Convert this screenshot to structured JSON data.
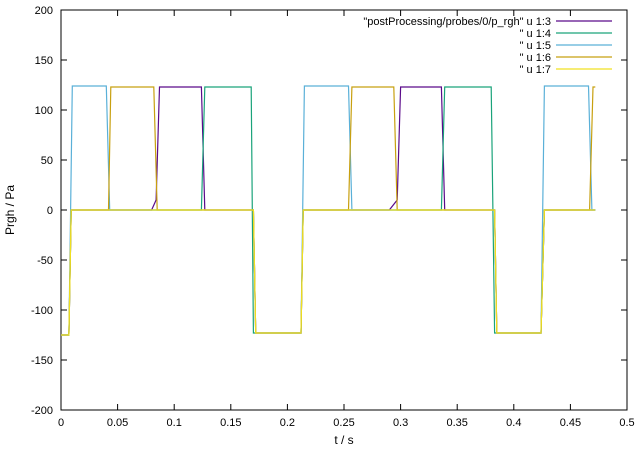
{
  "chart_data": {
    "type": "line",
    "xlabel": "t / s",
    "ylabel": "Prgh / Pa",
    "xlim": [
      0,
      0.5
    ],
    "ylim": [
      -200,
      200
    ],
    "xticks": [
      "0",
      "0.05",
      "0.1",
      "0.15",
      "0.2",
      "0.25",
      "0.3",
      "0.35",
      "0.4",
      "0.45",
      "0.5"
    ],
    "yticks": [
      "-200",
      "-150",
      "-100",
      "-50",
      "0",
      "50",
      "100",
      "150",
      "200"
    ],
    "grid": false,
    "legend_position": "top-right",
    "series": [
      {
        "name": "\"postProcessing/probes/0/p_rgh\" u 1:3",
        "color": "#5a0a8a",
        "x": [
          0,
          0.007,
          0.009,
          0.08,
          0.084,
          0.087,
          0.124,
          0.127,
          0.17,
          0.172,
          0.212,
          0.214,
          0.29,
          0.297,
          0.3,
          0.336,
          0.339,
          0.383,
          0.385,
          0.424,
          0.427,
          0.472
        ],
        "y": [
          -125,
          -125,
          0,
          0,
          10,
          123,
          123,
          0,
          0,
          -123,
          -123,
          0,
          0,
          10,
          123,
          123,
          0,
          0,
          -123,
          -123,
          0,
          0
        ]
      },
      {
        "name": "\" u 1:4",
        "color": "#1aa37a",
        "x": [
          0,
          0.007,
          0.009,
          0.124,
          0.127,
          0.168,
          0.17,
          0.212,
          0.214,
          0.336,
          0.339,
          0.38,
          0.383,
          0.424,
          0.427,
          0.472
        ],
        "y": [
          -125,
          -125,
          0,
          0,
          123,
          123,
          -123,
          -123,
          0,
          0,
          123,
          123,
          -123,
          -123,
          0,
          0
        ]
      },
      {
        "name": "\" u 1:5",
        "color": "#5ab0d8",
        "x": [
          0,
          0.007,
          0.01,
          0.04,
          0.043,
          0.17,
          0.172,
          0.212,
          0.215,
          0.254,
          0.257,
          0.383,
          0.385,
          0.424,
          0.427,
          0.466,
          0.469,
          0.472
        ],
        "y": [
          -125,
          -125,
          124,
          124,
          0,
          0,
          -123,
          -123,
          124,
          124,
          0,
          0,
          -123,
          -123,
          124,
          124,
          0,
          0
        ]
      },
      {
        "name": "\" u 1:6",
        "color": "#c8a010",
        "x": [
          0,
          0.007,
          0.009,
          0.042,
          0.044,
          0.082,
          0.085,
          0.17,
          0.172,
          0.212,
          0.214,
          0.254,
          0.257,
          0.294,
          0.297,
          0.383,
          0.385,
          0.424,
          0.427,
          0.467,
          0.47,
          0.472
        ],
        "y": [
          -125,
          -125,
          0,
          0,
          123,
          123,
          0,
          0,
          -123,
          -123,
          0,
          0,
          123,
          123,
          0,
          0,
          -123,
          -123,
          0,
          0,
          123,
          123
        ]
      },
      {
        "name": "\" u 1:7",
        "color": "#f0e020",
        "x": [
          0,
          0.007,
          0.009,
          0.17,
          0.172,
          0.212,
          0.214,
          0.383,
          0.385,
          0.424,
          0.427,
          0.472
        ],
        "y": [
          -125,
          -125,
          0,
          0,
          -123,
          -123,
          0,
          0,
          -123,
          -123,
          0,
          0
        ]
      }
    ]
  }
}
